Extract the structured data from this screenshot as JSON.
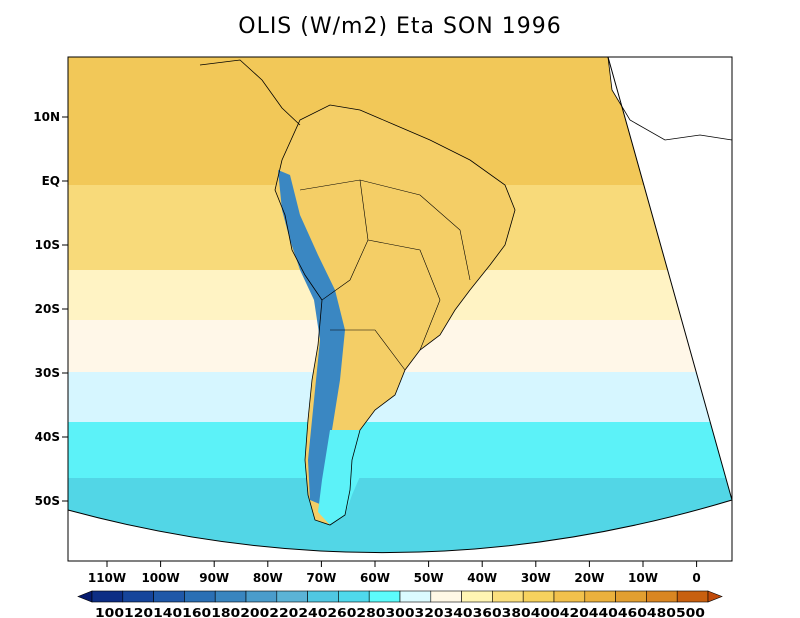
{
  "title": "OLIS (W/m2) Eta SON 1996",
  "map": {
    "lat_labels": [
      "10N",
      "EQ",
      "10S",
      "20S",
      "30S",
      "40S",
      "50S"
    ],
    "lon_labels": [
      "110W",
      "100W",
      "90W",
      "80W",
      "70W",
      "60W",
      "50W",
      "40W",
      "30W",
      "20W",
      "10W",
      "0"
    ]
  },
  "colorbar": {
    "levels": [
      100,
      120,
      140,
      160,
      180,
      200,
      220,
      240,
      260,
      280,
      300,
      320,
      340,
      360,
      380,
      400,
      420,
      440,
      460,
      480,
      500
    ],
    "colors": [
      "#061b6e",
      "#0d2e85",
      "#16459b",
      "#1f58a8",
      "#2a6fb4",
      "#3985bf",
      "#4a9ccb",
      "#5bb3d6",
      "#50c8e2",
      "#4fd9ec",
      "#5cfcfc",
      "#dbfbff",
      "#fff8e6",
      "#fff5b3",
      "#fbe07e",
      "#f6d25e",
      "#f2c14c",
      "#ebb13d",
      "#e29f30",
      "#d98622",
      "#c8600f",
      "#c04a09"
    ],
    "label_text": "100120140160180200220240260280300320340360380400420440460480500"
  },
  "field_colors": {
    "ocean_north": "#f2c858",
    "ocean_mid": "#f8da7a",
    "ocean_pale": "#fff3c4",
    "ocean_cream": "#fff7e8",
    "ocean_lightblue": "#d6f6ff",
    "ocean_cyan": "#5cf2f8",
    "ocean_teal": "#52d6e6",
    "andes_blue": "#3a87c2",
    "land_warm": "#f4ce66"
  }
}
